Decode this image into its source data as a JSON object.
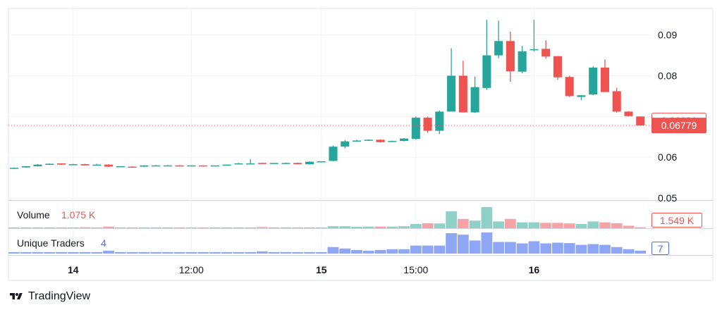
{
  "brand": {
    "name": "TradingView",
    "logo_icon": "tradingview-logo-icon"
  },
  "colors": {
    "up": "#26a69a",
    "down": "#ef5350",
    "up_vol": "#8fd0c7",
    "down_vol": "#f5a3a6",
    "traders": "#8fa6f5",
    "traders_text": "#4b6ef5",
    "grid": "#f0f3fa",
    "axis_text": "#131722",
    "price_line": "#ef5350"
  },
  "chart_data": {
    "type": "candlestick",
    "price_axis": {
      "ticks": [
        0.05,
        0.06,
        0.07,
        0.08,
        0.09
      ],
      "tick_labels": [
        "0.05",
        "0.06",
        "0.07",
        "0.08",
        "0.09"
      ],
      "ylim": [
        0.0495,
        0.0965
      ]
    },
    "time_axis": {
      "labels": [
        {
          "text": "14",
          "bold": true,
          "index": 5
        },
        {
          "text": "12:00",
          "bold": false,
          "index": 15
        },
        {
          "text": "15",
          "bold": true,
          "index": 26
        },
        {
          "text": "15:00",
          "bold": false,
          "index": 34
        },
        {
          "text": "16",
          "bold": true,
          "index": 44
        }
      ]
    },
    "price_labels": [
      {
        "text": "0.06901",
        "value": 0.06901,
        "style": "outline"
      },
      {
        "text": "0.06779",
        "value": 0.06779,
        "style": "filled",
        "line": true
      }
    ],
    "candles": [
      {
        "o": 0.0574,
        "h": 0.0575,
        "l": 0.0573,
        "c": 0.0574,
        "up": true
      },
      {
        "o": 0.0575,
        "h": 0.0578,
        "l": 0.0574,
        "c": 0.0578,
        "up": true
      },
      {
        "o": 0.0578,
        "h": 0.0583,
        "l": 0.0577,
        "c": 0.0582,
        "up": true
      },
      {
        "o": 0.0583,
        "h": 0.0585,
        "l": 0.0581,
        "c": 0.0584,
        "up": true
      },
      {
        "o": 0.0585,
        "h": 0.0585,
        "l": 0.0581,
        "c": 0.0582,
        "up": false
      },
      {
        "o": 0.0583,
        "h": 0.0584,
        "l": 0.0581,
        "c": 0.0582,
        "up": true
      },
      {
        "o": 0.0583,
        "h": 0.0584,
        "l": 0.058,
        "c": 0.058,
        "up": false
      },
      {
        "o": 0.0582,
        "h": 0.0584,
        "l": 0.058,
        "c": 0.0582,
        "up": true
      },
      {
        "o": 0.0582,
        "h": 0.0583,
        "l": 0.0576,
        "c": 0.0577,
        "up": false
      },
      {
        "o": 0.0578,
        "h": 0.0578,
        "l": 0.0577,
        "c": 0.0578,
        "up": true
      },
      {
        "o": 0.0577,
        "h": 0.0578,
        "l": 0.0576,
        "c": 0.0577,
        "up": false
      },
      {
        "o": 0.0577,
        "h": 0.058,
        "l": 0.0576,
        "c": 0.058,
        "up": true
      },
      {
        "o": 0.058,
        "h": 0.0581,
        "l": 0.0579,
        "c": 0.058,
        "up": true
      },
      {
        "o": 0.058,
        "h": 0.0581,
        "l": 0.0579,
        "c": 0.058,
        "up": true
      },
      {
        "o": 0.058,
        "h": 0.0581,
        "l": 0.0579,
        "c": 0.0579,
        "up": false
      },
      {
        "o": 0.0579,
        "h": 0.058,
        "l": 0.0578,
        "c": 0.058,
        "up": true
      },
      {
        "o": 0.058,
        "h": 0.058,
        "l": 0.0577,
        "c": 0.0579,
        "up": false
      },
      {
        "o": 0.0579,
        "h": 0.058,
        "l": 0.0578,
        "c": 0.058,
        "up": true
      },
      {
        "o": 0.058,
        "h": 0.0582,
        "l": 0.058,
        "c": 0.0582,
        "up": true
      },
      {
        "o": 0.0583,
        "h": 0.0586,
        "l": 0.0583,
        "c": 0.0585,
        "up": true
      },
      {
        "o": 0.0585,
        "h": 0.0595,
        "l": 0.0583,
        "c": 0.0585,
        "up": true
      },
      {
        "o": 0.0586,
        "h": 0.0587,
        "l": 0.0584,
        "c": 0.0585,
        "up": false
      },
      {
        "o": 0.0585,
        "h": 0.0586,
        "l": 0.0585,
        "c": 0.0586,
        "up": true
      },
      {
        "o": 0.0586,
        "h": 0.0587,
        "l": 0.0584,
        "c": 0.0585,
        "up": true
      },
      {
        "o": 0.0586,
        "h": 0.0587,
        "l": 0.0583,
        "c": 0.0583,
        "up": false
      },
      {
        "o": 0.0583,
        "h": 0.059,
        "l": 0.0582,
        "c": 0.0589,
        "up": true
      },
      {
        "o": 0.059,
        "h": 0.059,
        "l": 0.059,
        "c": 0.059,
        "up": true
      },
      {
        "o": 0.0591,
        "h": 0.0629,
        "l": 0.059,
        "c": 0.0626,
        "up": true
      },
      {
        "o": 0.0626,
        "h": 0.0642,
        "l": 0.0622,
        "c": 0.0639,
        "up": true
      },
      {
        "o": 0.0639,
        "h": 0.0643,
        "l": 0.0638,
        "c": 0.0641,
        "up": true
      },
      {
        "o": 0.0642,
        "h": 0.0644,
        "l": 0.064,
        "c": 0.0643,
        "up": true
      },
      {
        "o": 0.0643,
        "h": 0.0644,
        "l": 0.0636,
        "c": 0.0637,
        "up": false
      },
      {
        "o": 0.0638,
        "h": 0.0641,
        "l": 0.0637,
        "c": 0.064,
        "up": true
      },
      {
        "o": 0.064,
        "h": 0.0647,
        "l": 0.0639,
        "c": 0.0646,
        "up": true
      },
      {
        "o": 0.0645,
        "h": 0.07,
        "l": 0.0643,
        "c": 0.0697,
        "up": true
      },
      {
        "o": 0.0697,
        "h": 0.07,
        "l": 0.066,
        "c": 0.0665,
        "up": false
      },
      {
        "o": 0.0665,
        "h": 0.0715,
        "l": 0.0657,
        "c": 0.0712,
        "up": true
      },
      {
        "o": 0.0712,
        "h": 0.0867,
        "l": 0.0712,
        "c": 0.08,
        "up": true
      },
      {
        "o": 0.08,
        "h": 0.0837,
        "l": 0.071,
        "c": 0.071,
        "up": false
      },
      {
        "o": 0.071,
        "h": 0.0798,
        "l": 0.0709,
        "c": 0.0772,
        "up": true
      },
      {
        "o": 0.077,
        "h": 0.0937,
        "l": 0.0765,
        "c": 0.085,
        "up": true
      },
      {
        "o": 0.085,
        "h": 0.0935,
        "l": 0.0843,
        "c": 0.0885,
        "up": true
      },
      {
        "o": 0.0885,
        "h": 0.0908,
        "l": 0.0785,
        "c": 0.0811,
        "up": false
      },
      {
        "o": 0.081,
        "h": 0.0873,
        "l": 0.0806,
        "c": 0.086,
        "up": true
      },
      {
        "o": 0.0863,
        "h": 0.0937,
        "l": 0.086,
        "c": 0.0865,
        "up": true
      },
      {
        "o": 0.0866,
        "h": 0.0887,
        "l": 0.0842,
        "c": 0.0847,
        "up": false
      },
      {
        "o": 0.0848,
        "h": 0.0848,
        "l": 0.079,
        "c": 0.0796,
        "up": false
      },
      {
        "o": 0.0797,
        "h": 0.08,
        "l": 0.0748,
        "c": 0.075,
        "up": false
      },
      {
        "o": 0.0748,
        "h": 0.0753,
        "l": 0.074,
        "c": 0.0752,
        "up": true
      },
      {
        "o": 0.0754,
        "h": 0.0823,
        "l": 0.0752,
        "c": 0.082,
        "up": true
      },
      {
        "o": 0.082,
        "h": 0.084,
        "l": 0.076,
        "c": 0.076,
        "up": false
      },
      {
        "o": 0.0762,
        "h": 0.077,
        "l": 0.071,
        "c": 0.0712,
        "up": false
      },
      {
        "o": 0.0712,
        "h": 0.0713,
        "l": 0.07,
        "c": 0.0701,
        "up": false
      },
      {
        "o": 0.07,
        "h": 0.07,
        "l": 0.0678,
        "c": 0.0678,
        "up": false
      }
    ],
    "volume": {
      "label": "Volume",
      "value_text": "1.075 K",
      "axis_label": "1.549 K",
      "values": [
        0.05,
        0.05,
        0.05,
        0.05,
        0.05,
        0.05,
        0.06,
        0.05,
        0.1,
        0.05,
        0.05,
        0.05,
        0.05,
        0.05,
        0.05,
        0.05,
        0.05,
        0.05,
        0.05,
        0.05,
        0.05,
        0.07,
        0.05,
        0.05,
        0.05,
        0.05,
        0.05,
        0.12,
        0.12,
        0.09,
        0.1,
        0.1,
        0.1,
        0.12,
        0.25,
        0.3,
        0.28,
        1.0,
        0.55,
        0.45,
        1.25,
        0.4,
        0.55,
        0.35,
        0.35,
        0.32,
        0.32,
        0.28,
        0.25,
        0.4,
        0.35,
        0.3,
        0.15,
        0.06
      ]
    },
    "unique_traders": {
      "label": "Unique Traders",
      "value_text": "4",
      "axis_label": "7",
      "values": [
        0.1,
        0.1,
        0.1,
        0.1,
        0.1,
        0.1,
        0.1,
        0.1,
        0.2,
        0.1,
        0.1,
        0.1,
        0.1,
        0.1,
        0.1,
        0.1,
        0.1,
        0.1,
        0.1,
        0.1,
        0.1,
        0.15,
        0.1,
        0.1,
        0.1,
        0.1,
        0.1,
        0.45,
        0.35,
        0.25,
        0.2,
        0.25,
        0.3,
        0.3,
        0.55,
        0.55,
        0.55,
        1.4,
        1.3,
        0.9,
        1.45,
        0.8,
        0.8,
        0.7,
        0.85,
        0.7,
        0.75,
        0.72,
        0.6,
        0.65,
        0.6,
        0.45,
        0.3,
        0.2
      ]
    }
  }
}
